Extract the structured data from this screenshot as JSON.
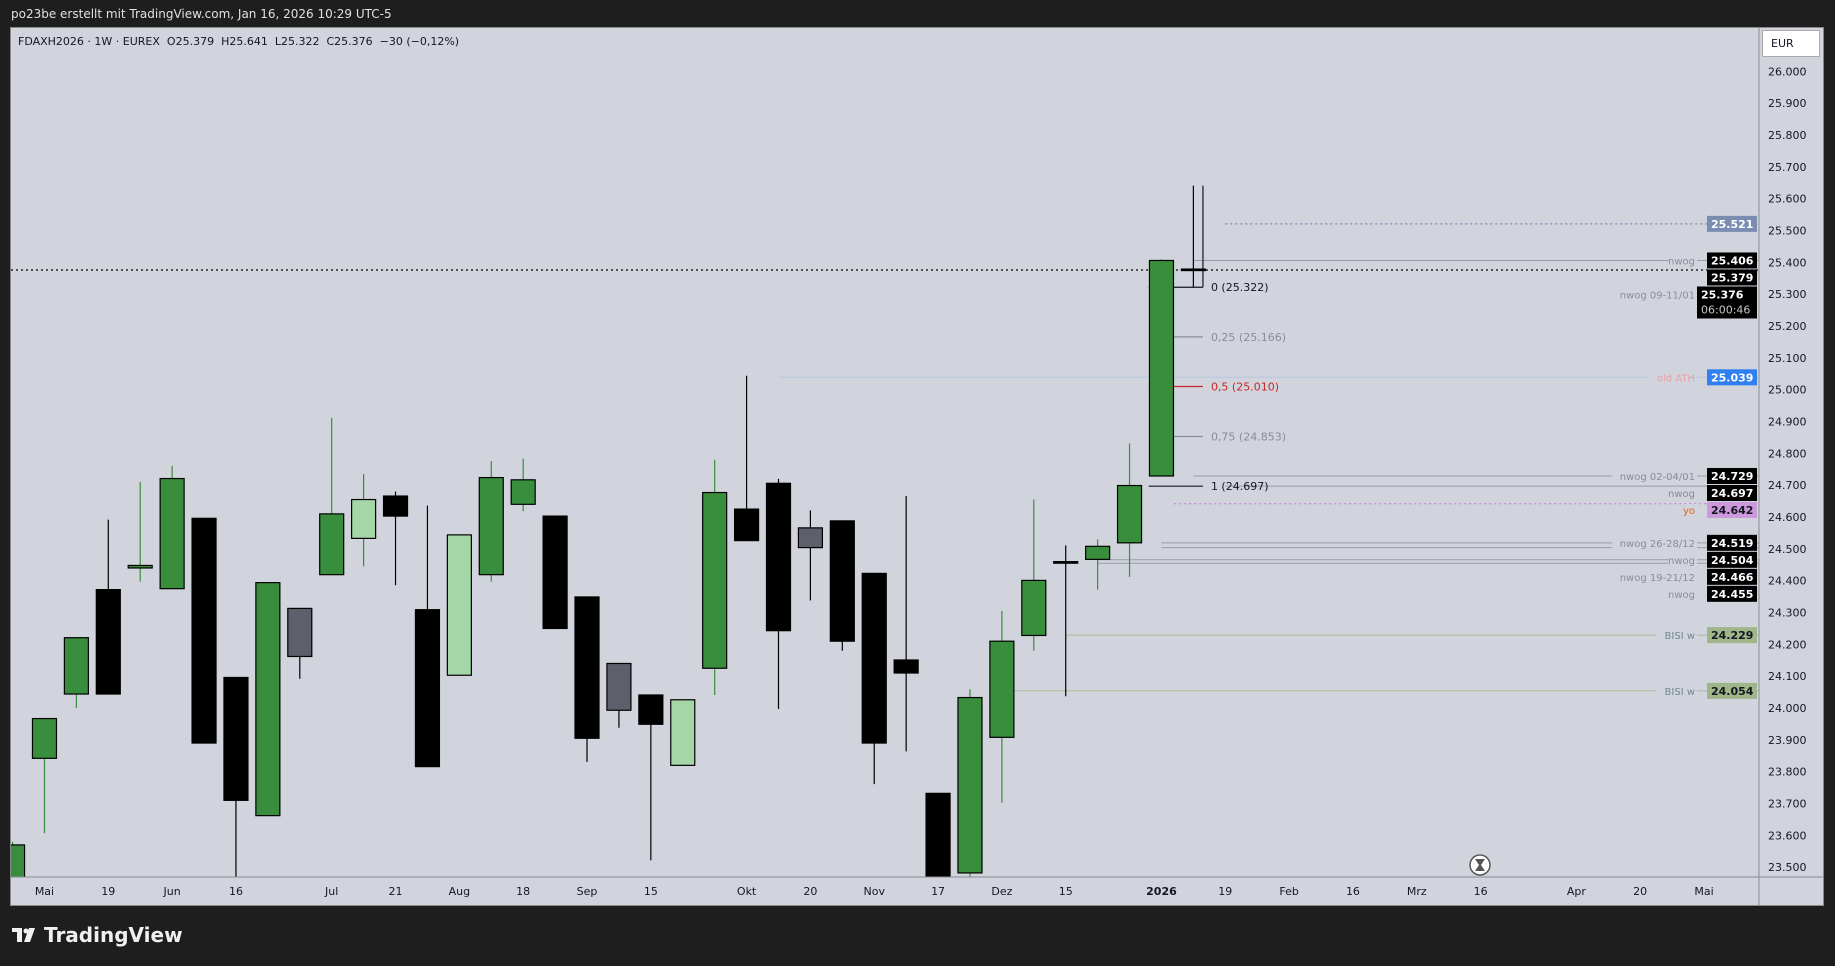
{
  "header": {
    "attribution": "po23be erstellt mit TradingView.com, Jan 16, 2026 10:29 UTC-5"
  },
  "legend": {
    "symbol": "FDAXH2026 · 1W · EUREX",
    "open": "O25.379",
    "high": "H25.641",
    "low": "L25.322",
    "close": "C25.376",
    "change": "−30 (−0,12%)"
  },
  "currency_button": "EUR",
  "brand": "TradingView",
  "colors": {
    "background": "#d1d4dc",
    "up": "#388e3c",
    "up_light": "#a5d6a7",
    "down": "#000000",
    "neutral": "#5d606b",
    "old_ath": "#2f7ff0",
    "last_fib_red": "#c62828",
    "yo": "#cc88dd",
    "bisi": "#9fb68a",
    "dotted_blue": "#7a8cb0"
  },
  "chart_data": {
    "type": "candlestick",
    "symbol": "FDAXH2026",
    "interval": "1W",
    "ylim": [
      23500,
      26000
    ],
    "y_ticks": [
      "23.500",
      "23.600",
      "23.700",
      "23.800",
      "23.900",
      "24.000",
      "24.100",
      "24.200",
      "24.300",
      "24.400",
      "24.500",
      "24.600",
      "24.700",
      "24.800",
      "24.900",
      "25.000",
      "25.100",
      "25.200",
      "25.300",
      "25.400",
      "25.500",
      "25.600",
      "25.700",
      "25.800",
      "25.900",
      "26.000"
    ],
    "x_tick_labels": [
      "Mai",
      "19",
      "Jun",
      "16",
      "Jul",
      "21",
      "Aug",
      "18",
      "Sep",
      "15",
      "Okt",
      "20",
      "Nov",
      "17",
      "Dez",
      "15",
      "2026",
      "19",
      "Feb",
      "16",
      "Mrz",
      "16",
      "Apr",
      "20",
      "Mai"
    ],
    "candles": [
      {
        "o": 23400,
        "h": 23580,
        "l": 23380,
        "c": 23570,
        "color": "up"
      },
      {
        "o": 23842,
        "h": 23967,
        "l": 23607,
        "c": 23967,
        "color": "up"
      },
      {
        "o": 24044,
        "h": 24221,
        "l": 24000,
        "c": 24221,
        "color": "up"
      },
      {
        "o": 24372,
        "h": 24592,
        "l": 24044,
        "c": 24044,
        "color": "down"
      },
      {
        "o": 24440,
        "h": 24710,
        "l": 24397,
        "c": 24448,
        "color": "up"
      },
      {
        "o": 24375,
        "h": 24761,
        "l": 24375,
        "c": 24721,
        "color": "up"
      },
      {
        "o": 24596,
        "h": 24596,
        "l": 23890,
        "c": 23890,
        "color": "down"
      },
      {
        "o": 24096,
        "h": 24096,
        "l": 23467,
        "c": 23710,
        "color": "down"
      },
      {
        "o": 23662,
        "h": 24394,
        "l": 23662,
        "c": 24394,
        "color": "up"
      },
      {
        "o": 24313,
        "h": 24313,
        "l": 24092,
        "c": 24162,
        "color": "neutral"
      },
      {
        "o": 24419,
        "h": 24912,
        "l": 24419,
        "c": 24610,
        "color": "up"
      },
      {
        "o": 24533,
        "h": 24735,
        "l": 24445,
        "c": 24655,
        "color": "up_light"
      },
      {
        "o": 24666,
        "h": 24680,
        "l": 24386,
        "c": 24603,
        "color": "down"
      },
      {
        "o": 24309,
        "h": 24636,
        "l": 23816,
        "c": 23816,
        "color": "down"
      },
      {
        "o": 24103,
        "h": 24544,
        "l": 24103,
        "c": 24544,
        "color": "up_light"
      },
      {
        "o": 24419,
        "h": 24776,
        "l": 24397,
        "c": 24724,
        "color": "up"
      },
      {
        "o": 24640,
        "h": 24783,
        "l": 24618,
        "c": 24717,
        "color": "up"
      },
      {
        "o": 24603,
        "h": 24603,
        "l": 24250,
        "c": 24250,
        "color": "down"
      },
      {
        "o": 24349,
        "h": 24349,
        "l": 23831,
        "c": 23905,
        "color": "down"
      },
      {
        "o": 24140,
        "h": 24140,
        "l": 23938,
        "c": 23993,
        "color": "neutral"
      },
      {
        "o": 24041,
        "h": 24041,
        "l": 23522,
        "c": 23949,
        "color": "down"
      },
      {
        "o": 23820,
        "h": 24026,
        "l": 23818,
        "c": 24026,
        "color": "up_light"
      },
      {
        "o": 24125,
        "h": 24780,
        "l": 24041,
        "c": 24677,
        "color": "up"
      },
      {
        "o": 24625,
        "h": 25044,
        "l": 24526,
        "c": 24526,
        "color": "down"
      },
      {
        "o": 24706,
        "h": 24720,
        "l": 23997,
        "c": 24243,
        "color": "down"
      },
      {
        "o": 24566,
        "h": 24621,
        "l": 24338,
        "c": 24504,
        "color": "neutral"
      },
      {
        "o": 24588,
        "h": 24588,
        "l": 24180,
        "c": 24210,
        "color": "down"
      },
      {
        "o": 24423,
        "h": 24423,
        "l": 23761,
        "c": 23890,
        "color": "down"
      },
      {
        "o": 24151,
        "h": 24666,
        "l": 23864,
        "c": 24110,
        "color": "down"
      },
      {
        "o": 23732,
        "h": 23732,
        "l": 23440,
        "c": 23440,
        "color": "down"
      },
      {
        "o": 23482,
        "h": 24059,
        "l": 23470,
        "c": 24033,
        "color": "up"
      },
      {
        "o": 23908,
        "h": 24305,
        "l": 23703,
        "c": 24210,
        "color": "up"
      },
      {
        "o": 24228,
        "h": 24655,
        "l": 24180,
        "c": 24401,
        "color": "up"
      },
      {
        "o": 24460,
        "h": 24511,
        "l": 24037,
        "c": 24455,
        "color": "down"
      },
      {
        "o": 24467,
        "h": 24530,
        "l": 24372,
        "c": 24508,
        "color": "up"
      },
      {
        "o": 24519,
        "h": 24831,
        "l": 24412,
        "c": 24699,
        "color": "up"
      },
      {
        "o": 24729,
        "h": 25410,
        "l": 24729,
        "c": 25406,
        "color": "up"
      },
      {
        "o": 25379,
        "h": 25641,
        "l": 25322,
        "c": 25376,
        "color": "down"
      }
    ],
    "levels": [
      {
        "price": 25521,
        "label": "",
        "axis_label": "25.521",
        "style": "dotted",
        "color": "#7a8cb0",
        "axis_bg": "#7a8cb0",
        "axis_fg": "#ffffff",
        "from": 37
      },
      {
        "price": 25406,
        "label": "nwog",
        "axis_label": "25.406",
        "style": "solid",
        "color": "#9a9da5",
        "axis_bg": "#000000",
        "axis_fg": "#ffffff",
        "from": 36
      },
      {
        "price": 25379,
        "label": "",
        "axis_label": "25.379",
        "style": "none",
        "color": "#9a9da5",
        "axis_bg": "#000000",
        "axis_fg": "#ffffff",
        "from": 37
      },
      {
        "price": 25376,
        "label": "nwog 09-11/01",
        "axis_label": "25.376",
        "countdown": "06:00:46",
        "style": "dotted",
        "color": "#000000",
        "axis_bg": "#000000",
        "axis_fg": "#ffffff",
        "from": -1
      },
      {
        "price": 25039,
        "label": "old ATH",
        "axis_label": "25.039",
        "style": "solid",
        "color": "#b7c6e0",
        "label_color": "#e7a0a8",
        "axis_bg": "#2f7ff0",
        "axis_fg": "#ffffff",
        "from": 23
      },
      {
        "price": 24729,
        "label": "nwog 02-04/01",
        "axis_label": "24.729",
        "style": "solid",
        "color": "#9a9da5",
        "axis_bg": "#000000",
        "axis_fg": "#ffffff",
        "from": 36
      },
      {
        "price": 24697,
        "label": "nwog",
        "axis_label": "24.697",
        "style": "solid",
        "color": "#9a9da5",
        "axis_bg": "#000000",
        "axis_fg": "#ffffff",
        "from": 37
      },
      {
        "price": 24642,
        "label": "yo",
        "axis_label": "24.642",
        "style": "dotted",
        "color": "#cc88dd",
        "label_color": "#e8641e",
        "axis_bg": "#cc99dd",
        "axis_fg": "#131722",
        "from": 35.4
      },
      {
        "price": 24519,
        "label": "nwog 26-28/12",
        "axis_label": "24.519",
        "style": "solid",
        "color": "#9a9da5",
        "axis_bg": "#000000",
        "axis_fg": "#ffffff",
        "from": 35
      },
      {
        "price": 24504,
        "label": "nwog",
        "axis_label": "24.504",
        "style": "solid",
        "color": "#9a9da5",
        "axis_bg": "#000000",
        "axis_fg": "#ffffff",
        "from": 35
      },
      {
        "price": 24466,
        "label": "nwog 19-21/12",
        "axis_label": "24.466",
        "style": "solid",
        "color": "#9a9da5",
        "axis_bg": "#000000",
        "axis_fg": "#ffffff",
        "from": 33
      },
      {
        "price": 24455,
        "label": "nwog",
        "axis_label": "24.455",
        "style": "solid",
        "color": "#9a9da5",
        "axis_bg": "#000000",
        "axis_fg": "#ffffff",
        "from": 33
      },
      {
        "price": 24229,
        "label": "BISI w",
        "axis_label": "24.229",
        "style": "solid",
        "color": "#a9b99a",
        "label_color": "#6f8a8a",
        "axis_bg": "#9fb68a",
        "axis_fg": "#131722",
        "from": 32
      },
      {
        "price": 24054,
        "label": "BISI w",
        "axis_label": "24.054",
        "style": "solid",
        "color": "#a9b99a",
        "label_color": "#6f8a8a",
        "axis_bg": "#9fb68a",
        "axis_fg": "#131722",
        "from": 30
      }
    ],
    "fibonacci": [
      {
        "price": 25322,
        "label": "0 (25.322)",
        "color": "#131722"
      },
      {
        "price": 25166,
        "label": "0,25 (25.166)",
        "color": "#8a8d95"
      },
      {
        "price": 25010,
        "label": "0,5 (25.010)",
        "color": "#c62828"
      },
      {
        "price": 24853,
        "label": "0,75 (24.853)",
        "color": "#8a8d95"
      },
      {
        "price": 24697,
        "label": "1 (24.697)",
        "color": "#131722"
      }
    ]
  }
}
